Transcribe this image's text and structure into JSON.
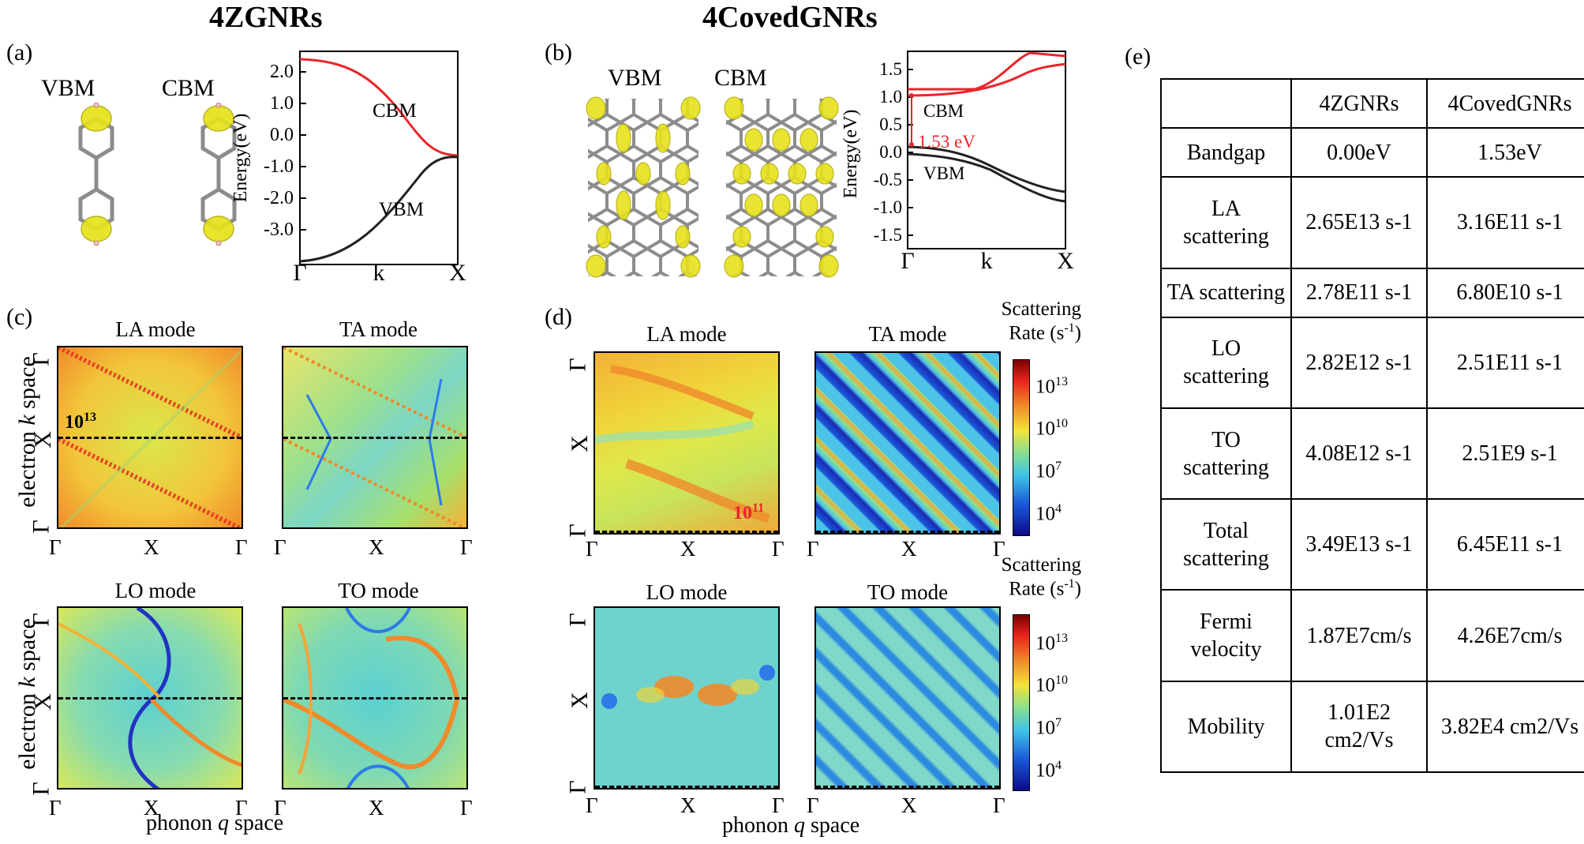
{
  "titles": {
    "left": "4ZGNRs",
    "right": "4CovedGNRs"
  },
  "panel_labels": {
    "a": "(a)",
    "b": "(b)",
    "c": "(c)",
    "d": "(d)",
    "e": "(e)"
  },
  "orbitals": {
    "vbm": "VBM",
    "cbm": "CBM"
  },
  "band_a": {
    "ylabel": "Energy(eV)",
    "yticks": [
      "2.0",
      "1.0",
      "0.0",
      "-1.0",
      "-2.0",
      "-3.0"
    ],
    "xticks": [
      "Γ",
      "k",
      "X"
    ],
    "cbm_label": "CBM",
    "vbm_label": "VBM"
  },
  "band_b": {
    "ylabel": "Energy(eV)",
    "yticks": [
      "1.5",
      "1.0",
      "0.5",
      "0.0",
      "-0.5",
      "-1.0",
      "-1.5"
    ],
    "xticks": [
      "Γ",
      "k",
      "X"
    ],
    "cbm_label": "CBM",
    "vbm_label": "VBM",
    "gap_label": "1.53 eV"
  },
  "modes": {
    "la": "LA mode",
    "ta": "TA mode",
    "lo": "LO mode",
    "to": "TO mode"
  },
  "heatmap_axes": {
    "ylabel_prefix": "electron ",
    "ylabel_k": "k",
    "ylabel_suffix": " space",
    "xlabel_prefix": "phonon ",
    "xlabel_q": "q",
    "xlabel_suffix": " space",
    "xticks": [
      "Γ",
      "X",
      "Γ"
    ],
    "yticks": [
      "Γ",
      "X",
      "Γ"
    ]
  },
  "annotations": {
    "c_la": "10",
    "c_la_exp": "13",
    "d_la": "10",
    "d_la_exp": "11"
  },
  "colorbar": {
    "title_line1": "Scattering",
    "title_line2": "Rate (s",
    "title_exp": "-1",
    "title_close": ")",
    "ticks": [
      {
        "base": "10",
        "exp": "13"
      },
      {
        "base": "10",
        "exp": "10"
      },
      {
        "base": "10",
        "exp": "7"
      },
      {
        "base": "10",
        "exp": "4"
      }
    ]
  },
  "table": {
    "header": [
      "",
      "4ZGNRs",
      "4CovedGNRs"
    ],
    "rows": [
      {
        "label": "Bandgap",
        "z": "0.00eV",
        "c": "1.53eV"
      },
      {
        "label": "LA scattering",
        "z": "2.65E13 s-1",
        "c": "3.16E11 s-1"
      },
      {
        "label": "TA scattering",
        "z": "2.78E11 s-1",
        "c": "6.80E10 s-1"
      },
      {
        "label": "LO scattering",
        "z": "2.82E12 s-1",
        "c": "2.51E11 s-1"
      },
      {
        "label": "TO scattering",
        "z": "4.08E12 s-1",
        "c": "2.51E9 s-1"
      },
      {
        "label": "Total scattering",
        "z": "3.49E13 s-1",
        "c": "6.45E11 s-1"
      },
      {
        "label": "Fermi velocity",
        "z": "1.87E7cm/s",
        "c": "4.26E7cm/s"
      },
      {
        "label": "Mobility",
        "z": "1.01E2 cm2/Vs",
        "c": "3.82E4 cm2/Vs"
      }
    ]
  },
  "colors": {
    "cbm_line": "#e8262b",
    "vbm_line": "#222222",
    "orbital": "#e6e21b",
    "gap": "#e8262b"
  }
}
